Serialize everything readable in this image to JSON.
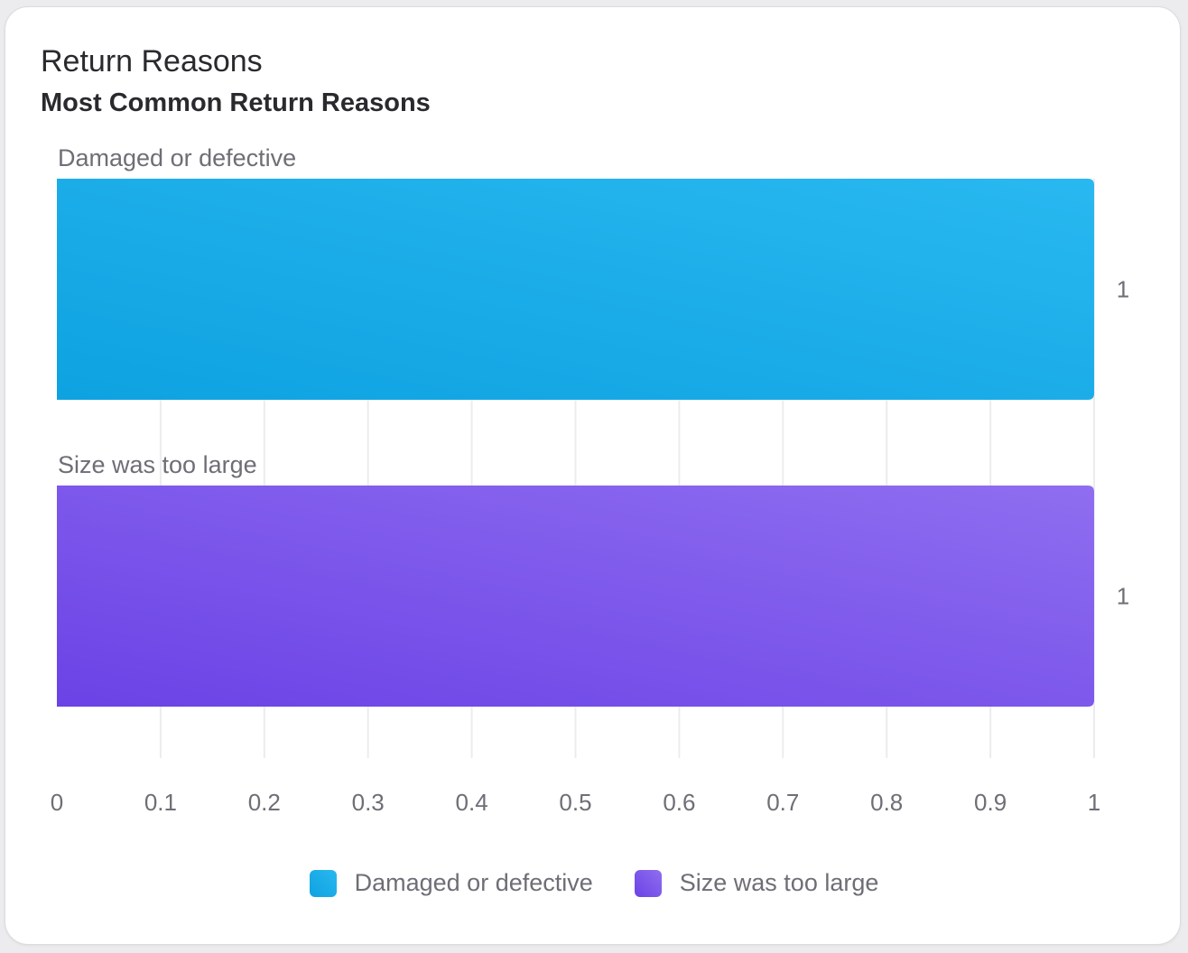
{
  "card": {
    "title": "Return Reasons",
    "subtitle": "Most Common Return Reasons"
  },
  "chart_data": {
    "type": "bar",
    "orientation": "horizontal",
    "categories": [
      "Damaged or defective",
      "Size was too large"
    ],
    "values": [
      1,
      1
    ],
    "value_labels": [
      "1",
      "1"
    ],
    "xlim": [
      0,
      1
    ],
    "x_ticks": [
      0,
      0.1,
      0.2,
      0.3,
      0.4,
      0.5,
      0.6,
      0.7,
      0.8,
      0.9,
      1
    ],
    "x_tick_labels": [
      "0",
      "0.1",
      "0.2",
      "0.3",
      "0.4",
      "0.5",
      "0.6",
      "0.7",
      "0.8",
      "0.9",
      "1"
    ],
    "grid": true,
    "legend_position": "bottom",
    "colors": {
      "Damaged or defective": [
        "#29b8f0",
        "#0ea2e1"
      ],
      "Size was too large": [
        "#8f6ef0",
        "#6b42e6"
      ]
    }
  },
  "legend": {
    "items": [
      {
        "label": "Damaged or defective",
        "color_start": "#29b8f0",
        "color_end": "#0ea2e1"
      },
      {
        "label": "Size was too large",
        "color_start": "#8f6ef0",
        "color_end": "#6b42e6"
      }
    ]
  }
}
